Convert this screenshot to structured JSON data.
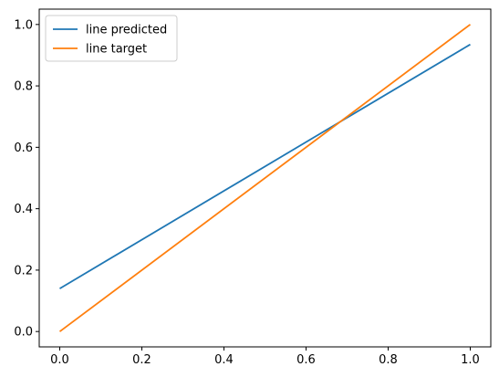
{
  "chart_data": {
    "type": "line",
    "title": "",
    "xlabel": "",
    "ylabel": "",
    "xlim": [
      -0.05,
      1.05
    ],
    "ylim": [
      -0.05,
      1.05
    ],
    "x_ticks": [
      0.0,
      0.2,
      0.4,
      0.6,
      0.8,
      1.0
    ],
    "x_tick_labels": [
      "0.0",
      "0.2",
      "0.4",
      "0.6",
      "0.8",
      "1.0"
    ],
    "y_ticks": [
      0.0,
      0.2,
      0.4,
      0.6,
      0.8,
      1.0
    ],
    "y_tick_labels": [
      "0.0",
      "0.2",
      "0.4",
      "0.6",
      "0.8",
      "1.0"
    ],
    "grid": false,
    "legend_position": "top-left",
    "series": [
      {
        "name": "line predicted",
        "color": "#1f77b4",
        "x": [
          0.0,
          1.0
        ],
        "y": [
          0.14,
          0.935
        ]
      },
      {
        "name": "line target",
        "color": "#ff7f0e",
        "x": [
          0.0,
          1.0
        ],
        "y": [
          0.0,
          1.0
        ]
      }
    ]
  }
}
